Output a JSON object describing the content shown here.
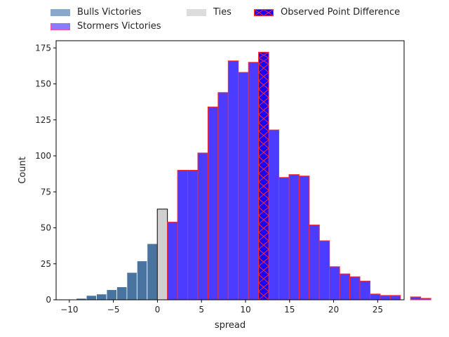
{
  "chart_data": {
    "type": "bar",
    "xlabel": "spread",
    "ylabel": "Count",
    "xlim": [
      -11.5,
      28
    ],
    "ylim": [
      0,
      180
    ],
    "xticks": [
      -10,
      -5,
      0,
      5,
      10,
      15,
      20,
      25
    ],
    "yticks": [
      0,
      25,
      50,
      75,
      100,
      125,
      150,
      175
    ],
    "grid": false,
    "legend_position": "top",
    "colors": {
      "bulls": "#4a74a0",
      "ties": "#d0d0d0",
      "stormers_fill": "#4b3cff",
      "stormers_edge": "#ff2a2a",
      "observed": "#1a00ff"
    },
    "bin_width": 1.15,
    "series": [
      {
        "name": "Bulls Victories",
        "bins": [
          {
            "x": -9.79,
            "value": 0
          },
          {
            "x": -8.64,
            "value": 1
          },
          {
            "x": -7.49,
            "value": 3
          },
          {
            "x": -6.34,
            "value": 4
          },
          {
            "x": -5.19,
            "value": 7
          },
          {
            "x": -4.04,
            "value": 9
          },
          {
            "x": -2.89,
            "value": 19
          },
          {
            "x": -1.74,
            "value": 27
          },
          {
            "x": -0.59,
            "value": 39
          }
        ]
      },
      {
        "name": "Ties",
        "bins": [
          {
            "x": 0.56,
            "value": 63
          }
        ]
      },
      {
        "name": "Stormers Victories",
        "bins": [
          {
            "x": 1.71,
            "value": 54
          },
          {
            "x": 2.86,
            "value": 90
          },
          {
            "x": 4.01,
            "value": 90
          },
          {
            "x": 5.16,
            "value": 102
          },
          {
            "x": 6.31,
            "value": 134
          },
          {
            "x": 7.46,
            "value": 144
          },
          {
            "x": 8.61,
            "value": 166
          },
          {
            "x": 9.76,
            "value": 158
          },
          {
            "x": 10.91,
            "value": 165
          },
          {
            "x": 12.06,
            "value": 172
          },
          {
            "x": 13.21,
            "value": 118
          },
          {
            "x": 14.36,
            "value": 85
          },
          {
            "x": 15.51,
            "value": 87
          },
          {
            "x": 16.66,
            "value": 86
          },
          {
            "x": 17.81,
            "value": 52
          },
          {
            "x": 18.96,
            "value": 41
          },
          {
            "x": 20.11,
            "value": 23
          },
          {
            "x": 21.26,
            "value": 18
          },
          {
            "x": 22.41,
            "value": 16
          },
          {
            "x": 23.56,
            "value": 13
          },
          {
            "x": 24.71,
            "value": 4
          },
          {
            "x": 25.86,
            "value": 3
          },
          {
            "x": 27.01,
            "value": 3
          },
          {
            "x": 28.16,
            "value": 0
          },
          {
            "x": 29.31,
            "value": 2
          },
          {
            "x": 30.46,
            "value": 1
          }
        ]
      }
    ],
    "observed_point_difference": {
      "name": "Observed Point Difference",
      "value": 12
    },
    "legend": [
      {
        "label": "Bulls Victories",
        "key": "bulls"
      },
      {
        "label": "Stormers Victories",
        "key": "stormers"
      },
      {
        "label": "Ties",
        "key": "ties"
      },
      {
        "label": "Observed Point Difference",
        "key": "observed"
      }
    ]
  }
}
